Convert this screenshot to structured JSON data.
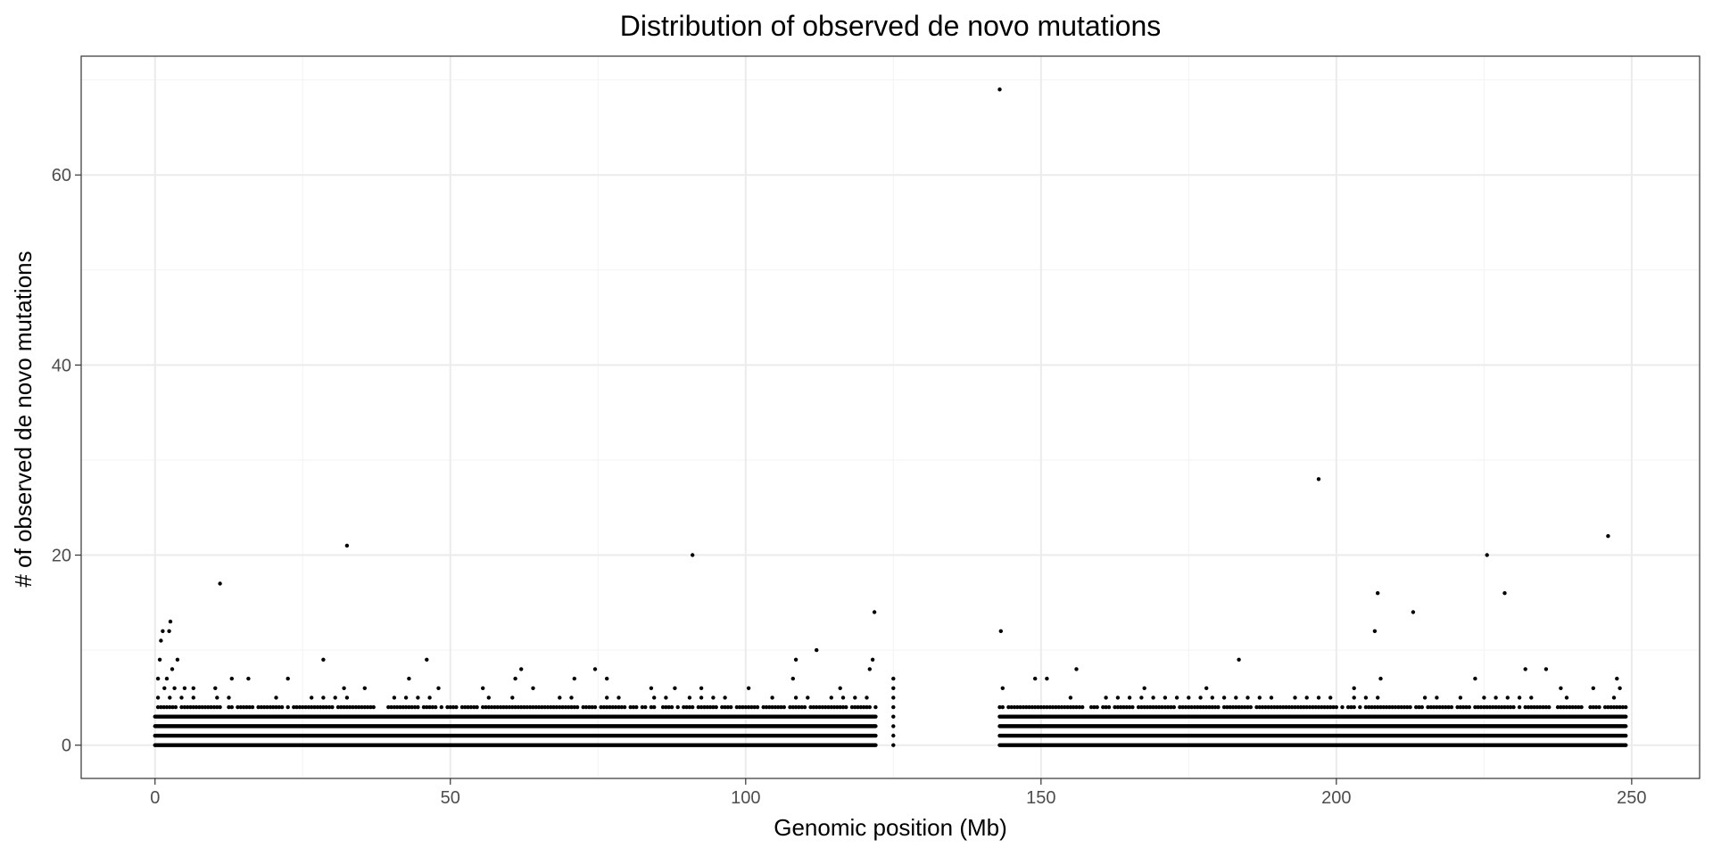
{
  "chart_data": {
    "type": "scatter",
    "title": "Distribution of observed de novo mutations",
    "xlabel": "Genomic position (Mb)",
    "ylabel": "# of observed de novo mutations",
    "xlim": [
      -12.5,
      261.5
    ],
    "ylim": [
      -3.5,
      72.5
    ],
    "x_ticks": [
      0,
      50,
      100,
      150,
      200,
      250
    ],
    "y_ticks": [
      0,
      20,
      40,
      60
    ],
    "grid": true,
    "legend": "none",
    "point_color": "#000000",
    "dense_bands": [
      {
        "x_range": [
          0,
          122
        ],
        "y_levels": [
          0,
          1,
          2,
          3
        ]
      },
      {
        "x_range": [
          143,
          249
        ],
        "y_levels": [
          0,
          1,
          2,
          3
        ]
      }
    ],
    "scattered_band": [
      {
        "x_range": [
          0.5,
          122
        ],
        "y": 4,
        "step": 0.5
      },
      {
        "x_range": [
          0.5,
          122
        ],
        "y": 5,
        "step": 2.0
      },
      {
        "x_range": [
          143,
          249
        ],
        "y": 4,
        "step": 0.5
      },
      {
        "x_range": [
          143,
          249
        ],
        "y": 5,
        "step": 2.0
      }
    ],
    "points": [
      {
        "x": 0.5,
        "y": 7
      },
      {
        "x": 0.8,
        "y": 9
      },
      {
        "x": 1.0,
        "y": 11
      },
      {
        "x": 1.3,
        "y": 12
      },
      {
        "x": 1.6,
        "y": 6
      },
      {
        "x": 2.0,
        "y": 7
      },
      {
        "x": 2.4,
        "y": 12
      },
      {
        "x": 2.6,
        "y": 13
      },
      {
        "x": 2.9,
        "y": 8
      },
      {
        "x": 3.3,
        "y": 6
      },
      {
        "x": 3.8,
        "y": 9
      },
      {
        "x": 5.0,
        "y": 6
      },
      {
        "x": 6.5,
        "y": 6
      },
      {
        "x": 10.2,
        "y": 6
      },
      {
        "x": 11.0,
        "y": 17
      },
      {
        "x": 13.0,
        "y": 7
      },
      {
        "x": 15.8,
        "y": 7
      },
      {
        "x": 22.5,
        "y": 7
      },
      {
        "x": 28.5,
        "y": 9
      },
      {
        "x": 32.0,
        "y": 6
      },
      {
        "x": 32.5,
        "y": 21
      },
      {
        "x": 35.5,
        "y": 6
      },
      {
        "x": 43.0,
        "y": 7
      },
      {
        "x": 46.0,
        "y": 9
      },
      {
        "x": 48.0,
        "y": 6
      },
      {
        "x": 55.5,
        "y": 6
      },
      {
        "x": 61.0,
        "y": 7
      },
      {
        "x": 62.0,
        "y": 8
      },
      {
        "x": 64.0,
        "y": 6
      },
      {
        "x": 71.0,
        "y": 7
      },
      {
        "x": 74.5,
        "y": 8
      },
      {
        "x": 76.5,
        "y": 7
      },
      {
        "x": 84.0,
        "y": 6
      },
      {
        "x": 88.0,
        "y": 6
      },
      {
        "x": 91.0,
        "y": 20
      },
      {
        "x": 92.5,
        "y": 6
      },
      {
        "x": 100.5,
        "y": 6
      },
      {
        "x": 108.5,
        "y": 9
      },
      {
        "x": 108.0,
        "y": 7
      },
      {
        "x": 112.0,
        "y": 10
      },
      {
        "x": 116.0,
        "y": 6
      },
      {
        "x": 121.0,
        "y": 8
      },
      {
        "x": 121.5,
        "y": 9
      },
      {
        "x": 121.8,
        "y": 14
      },
      {
        "x": 125.0,
        "y": 0
      },
      {
        "x": 125.0,
        "y": 1
      },
      {
        "x": 125.0,
        "y": 2
      },
      {
        "x": 125.0,
        "y": 3
      },
      {
        "x": 125.0,
        "y": 4
      },
      {
        "x": 125.0,
        "y": 5
      },
      {
        "x": 125.0,
        "y": 6
      },
      {
        "x": 125.0,
        "y": 7
      },
      {
        "x": 143.0,
        "y": 69
      },
      {
        "x": 143.2,
        "y": 12
      },
      {
        "x": 143.5,
        "y": 6
      },
      {
        "x": 149.0,
        "y": 7
      },
      {
        "x": 151.0,
        "y": 7
      },
      {
        "x": 156.0,
        "y": 8
      },
      {
        "x": 167.5,
        "y": 6
      },
      {
        "x": 178.0,
        "y": 6
      },
      {
        "x": 183.5,
        "y": 9
      },
      {
        "x": 197.0,
        "y": 28
      },
      {
        "x": 203.0,
        "y": 6
      },
      {
        "x": 206.5,
        "y": 12
      },
      {
        "x": 207.0,
        "y": 16
      },
      {
        "x": 207.5,
        "y": 7
      },
      {
        "x": 213.0,
        "y": 14
      },
      {
        "x": 223.5,
        "y": 7
      },
      {
        "x": 225.5,
        "y": 20
      },
      {
        "x": 228.5,
        "y": 16
      },
      {
        "x": 232.0,
        "y": 8
      },
      {
        "x": 235.5,
        "y": 8
      },
      {
        "x": 238.0,
        "y": 6
      },
      {
        "x": 243.5,
        "y": 6
      },
      {
        "x": 246.0,
        "y": 22
      },
      {
        "x": 247.5,
        "y": 7
      },
      {
        "x": 248.0,
        "y": 6
      }
    ]
  }
}
